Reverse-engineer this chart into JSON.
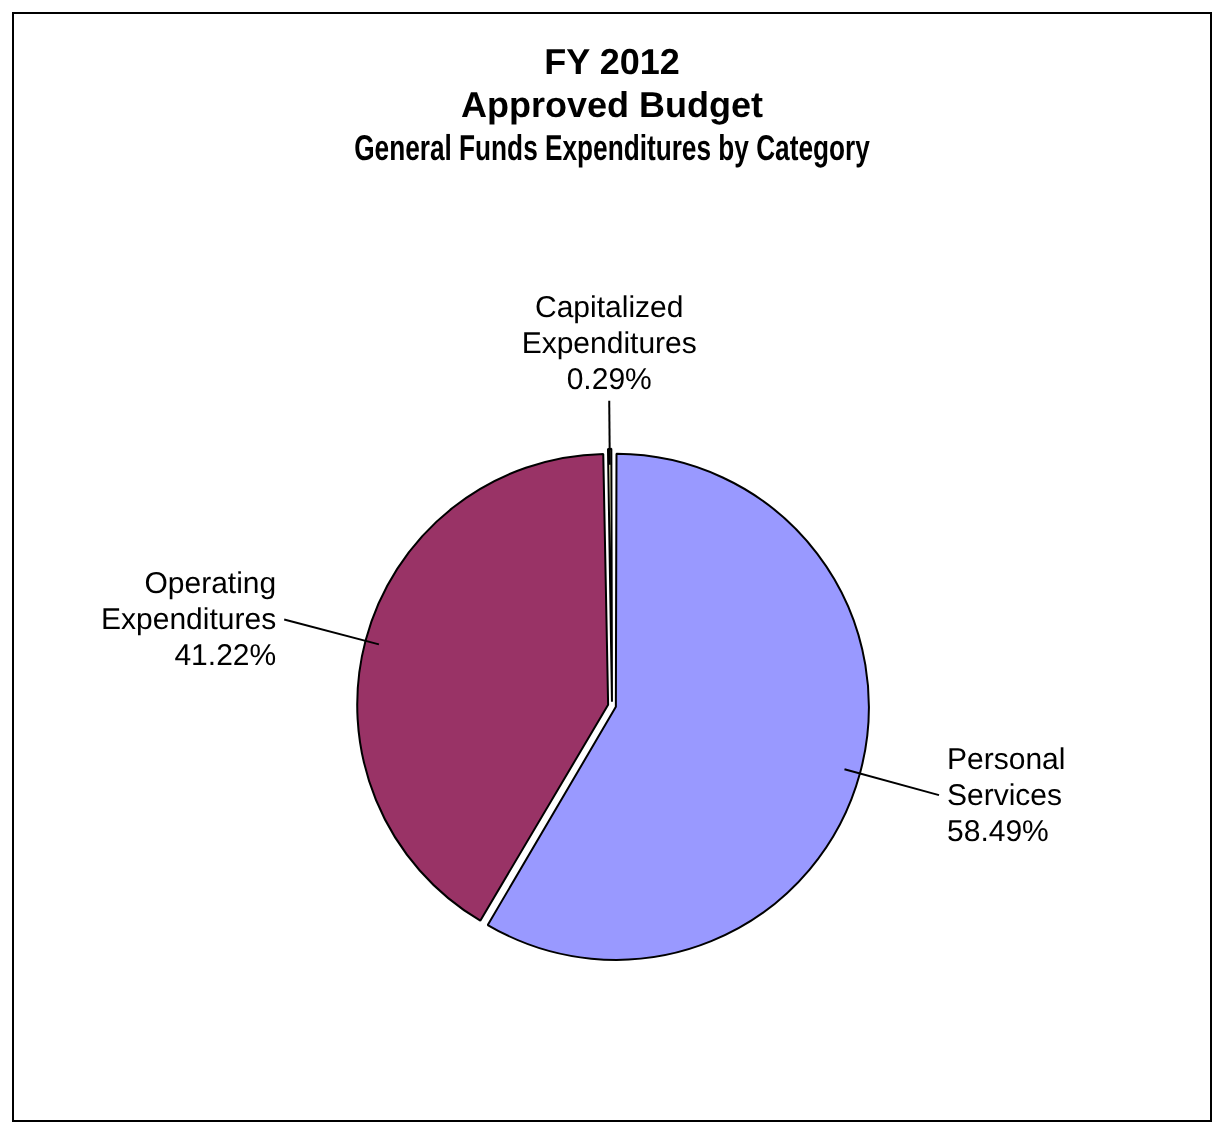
{
  "chart_data": {
    "type": "pie",
    "title": "FY 2012\nApproved Budget\nGeneral Funds Expenditures by Category",
    "categories": [
      "Personal Services",
      "Operating Expenditures",
      "Capitalized Expenditures"
    ],
    "values": [
      58.49,
      41.22,
      0.29
    ],
    "value_labels": [
      "58.49%",
      "41.22%",
      "0.29%"
    ],
    "colors": [
      "#9999ff",
      "#993366",
      "#ffffcc"
    ],
    "legend": false
  }
}
